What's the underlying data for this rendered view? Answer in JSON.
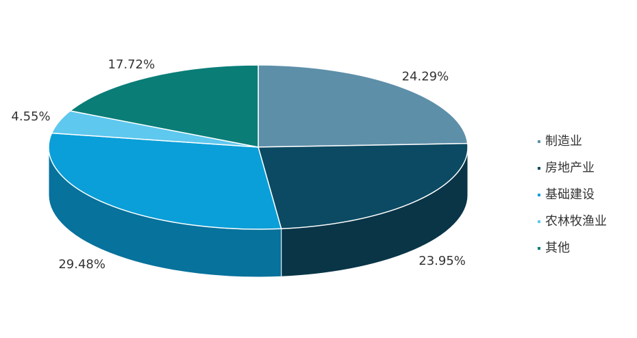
{
  "chart_data": {
    "type": "pie",
    "categories": [
      "制造业",
      "房地产业",
      "基础建设",
      "农林牧渔业",
      "其他"
    ],
    "values": [
      24.29,
      23.95,
      29.48,
      4.55,
      17.72
    ],
    "value_labels": [
      "24.29%",
      "23.95%",
      "29.48%",
      "4.55%",
      "17.72%"
    ],
    "colors": [
      "#5e8fa9",
      "#0c4a63",
      "#0a9fd8",
      "#5ec8ee",
      "#0a7d77"
    ],
    "legend": "right"
  }
}
